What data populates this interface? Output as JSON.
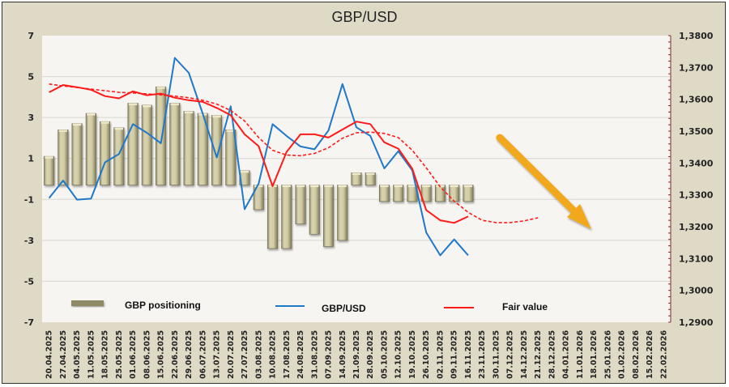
{
  "chart_data": {
    "type": "bar",
    "title": "GBP/USD",
    "xlabel": "",
    "ylabel": "",
    "ylim": [
      -7,
      7
    ],
    "y2lim": [
      1.29,
      1.38
    ],
    "grid": true,
    "legend_position": "bottom-inside",
    "y_ticks": [
      "7",
      "5",
      "3",
      "1",
      "-1",
      "-3",
      "-5",
      "-7"
    ],
    "y2_ticks": [
      "1,3800",
      "1,3700",
      "1,3600",
      "1,3500",
      "1,3400",
      "1,3300",
      "1,3200",
      "1,3100",
      "1,3000",
      "1,2900"
    ],
    "categories": [
      "20.04.2025",
      "27.04.2025",
      "04.05.2025",
      "11.05.2025",
      "18.05.2025",
      "25.05.2025",
      "01.06.2025",
      "08.06.2025",
      "15.06.2025",
      "22.06.2025",
      "29.06.2025",
      "06.07.2025",
      "13.07.2025",
      "20.07.2025",
      "27.07.2025",
      "03.08.2025",
      "10.08.2025",
      "17.08.2025",
      "24.08.2025",
      "31.08.2025",
      "07.09.2025",
      "14.09.2025",
      "21.09.2025",
      "28.09.2025",
      "05.10.2025",
      "12.10.2025",
      "19.10.2025",
      "26.10.2025",
      "02.11.2025",
      "09.11.2025",
      "16.11.2025",
      "23.11.2025",
      "30.11.2025",
      "07.12.2025",
      "14.12.2025",
      "21.12.2025",
      "28.12.2025",
      "04.01.2026",
      "11.01.2026",
      "18.01.2026",
      "25.01.2026",
      "01.02.2026",
      "08.02.2026",
      "15.02.2026",
      "22.02.2026"
    ],
    "bar_base": -0.3,
    "series": [
      {
        "name": "GBP positioning",
        "type": "bar",
        "axis": "left",
        "color": "#cfc9a0",
        "values": [
          1.1,
          2.4,
          2.7,
          3.2,
          2.8,
          2.5,
          3.7,
          3.6,
          4.5,
          3.7,
          3.3,
          3.2,
          3.1,
          2.4,
          0.4,
          -1.5,
          -3.4,
          -3.4,
          -2.2,
          -2.7,
          -3.3,
          -3.0,
          0.3,
          0.3,
          -1.1,
          -1.1,
          -1.1,
          -1.1,
          -1.1,
          -1.1,
          -1.1,
          null,
          null,
          null,
          null,
          null,
          null,
          null,
          null,
          null,
          null,
          null,
          null,
          null,
          null
        ]
      },
      {
        "name": "GBP/USD",
        "type": "line",
        "axis": "right",
        "color": "#1f78c8",
        "values": [
          1.329,
          1.3345,
          1.3285,
          1.3288,
          1.3402,
          1.3428,
          1.3522,
          1.3495,
          1.3462,
          1.373,
          1.3683,
          1.3555,
          1.3417,
          1.3578,
          1.3255,
          1.3335,
          1.3522,
          1.3485,
          1.3452,
          1.3443,
          1.3502,
          1.3648,
          1.3512,
          1.3485,
          1.3383,
          1.3437,
          1.3377,
          1.3182,
          1.311,
          1.316,
          1.311,
          null,
          null,
          null,
          null,
          null,
          null,
          null,
          null,
          null,
          null,
          null,
          null,
          null,
          null
        ]
      },
      {
        "name": "Fair value",
        "type": "line",
        "axis": "right",
        "color": "#ff1a1a",
        "values": [
          1.3622,
          1.3645,
          1.3638,
          1.363,
          1.361,
          1.3603,
          1.3625,
          1.3613,
          1.3618,
          1.3605,
          1.3597,
          1.3592,
          1.3573,
          1.355,
          1.349,
          1.3453,
          1.3327,
          1.3435,
          1.349,
          1.349,
          1.348,
          1.3505,
          1.353,
          1.3522,
          1.3465,
          1.3445,
          1.3382,
          1.3252,
          1.322,
          1.3212,
          1.3232,
          null,
          null,
          null,
          null,
          null,
          null,
          null,
          null,
          null,
          null,
          null,
          null,
          null,
          null
        ]
      },
      {
        "name": "Fair value trend",
        "type": "dashed-line",
        "axis": "right",
        "color": "#ff1a1a",
        "values": [
          1.3648,
          1.3642,
          1.3637,
          1.3632,
          1.3627,
          1.3622,
          1.362,
          1.3617,
          1.3614,
          1.361,
          1.3605,
          1.3597,
          1.3585,
          1.3565,
          1.3532,
          1.348,
          1.344,
          1.3425,
          1.3423,
          1.343,
          1.3448,
          1.3478,
          1.3495,
          1.3497,
          1.3493,
          1.348,
          1.344,
          1.3385,
          1.3325,
          1.328,
          1.3245,
          1.322,
          1.3213,
          1.3213,
          1.3218,
          1.3228,
          null,
          null,
          null,
          null,
          null,
          null,
          null,
          null,
          null
        ]
      }
    ],
    "legend": [
      "GBP positioning",
      "GBP/USD",
      "Fair value"
    ],
    "annotation": "downward-arrow"
  }
}
